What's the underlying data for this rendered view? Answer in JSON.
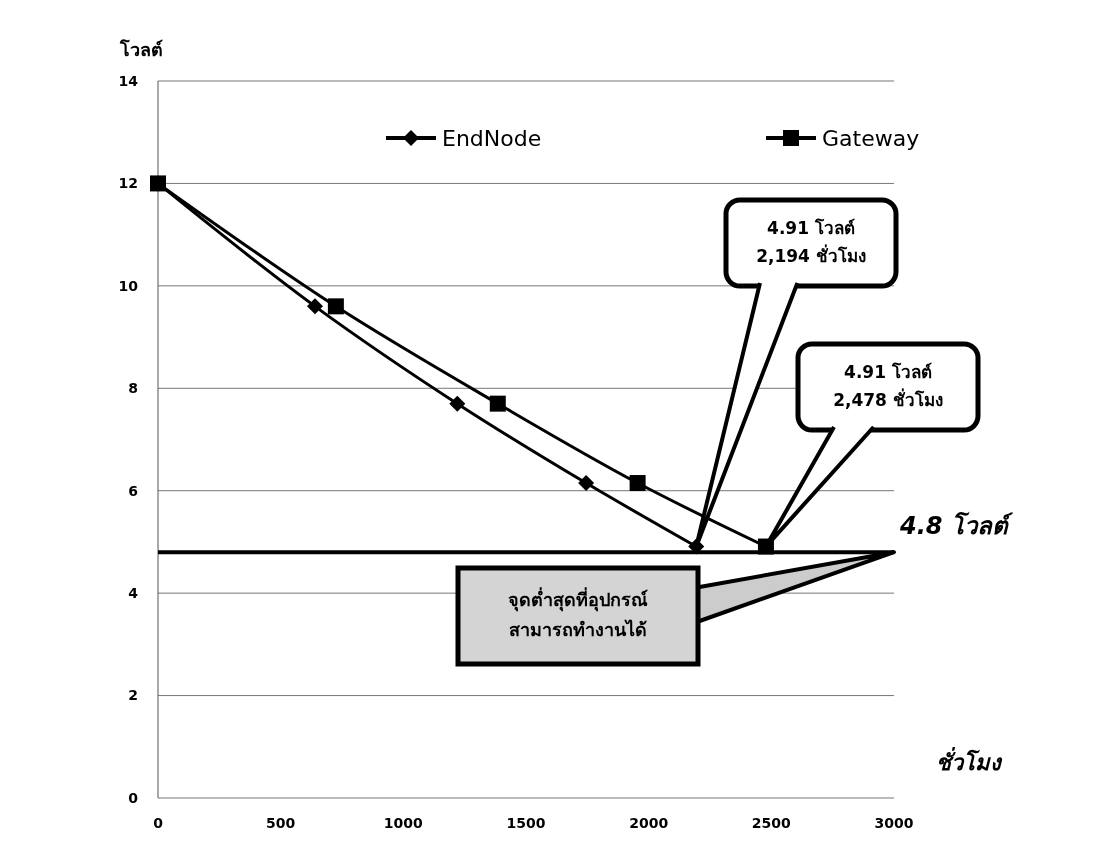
{
  "chart_data": {
    "type": "line",
    "xlabel": "ชั่วโมง",
    "ylabel": "โวลต์",
    "xlim": [
      0,
      3000
    ],
    "xticks": [
      0,
      500,
      1000,
      1500,
      2000,
      2500,
      3000
    ],
    "ylim": [
      0,
      14
    ],
    "yticks": [
      0,
      2,
      4,
      6,
      8,
      10,
      12,
      14
    ],
    "grid": "y",
    "legend": "top",
    "line_style": "solid",
    "series": [
      {
        "name": "EndNode",
        "color": "#000000",
        "marker": "diamond",
        "x": [
          0,
          640,
          1220,
          1745,
          2194
        ],
        "values": [
          12,
          9.6,
          7.7,
          6.15,
          4.91
        ]
      },
      {
        "name": "Gateway",
        "color": "#000000",
        "marker": "square",
        "x": [
          0,
          725,
          1385,
          1955,
          2478
        ],
        "values": [
          12,
          9.6,
          7.7,
          6.15,
          4.91
        ]
      }
    ],
    "ref_lines": [
      {
        "axis": "y",
        "value": 4.8,
        "label": "4.8 โวลต์",
        "color": "#000000"
      }
    ],
    "annotations": [
      {
        "text": "4.91 โวลต์\n2,194 ชั่วโมง",
        "x": 2194,
        "y": 4.91
      },
      "4.91 โวลต์\n2,478 ชั่วโมง",
      "จุดต่ำสุดที่อุปกรณ์\nสามารถทำงานได้"
    ]
  }
}
